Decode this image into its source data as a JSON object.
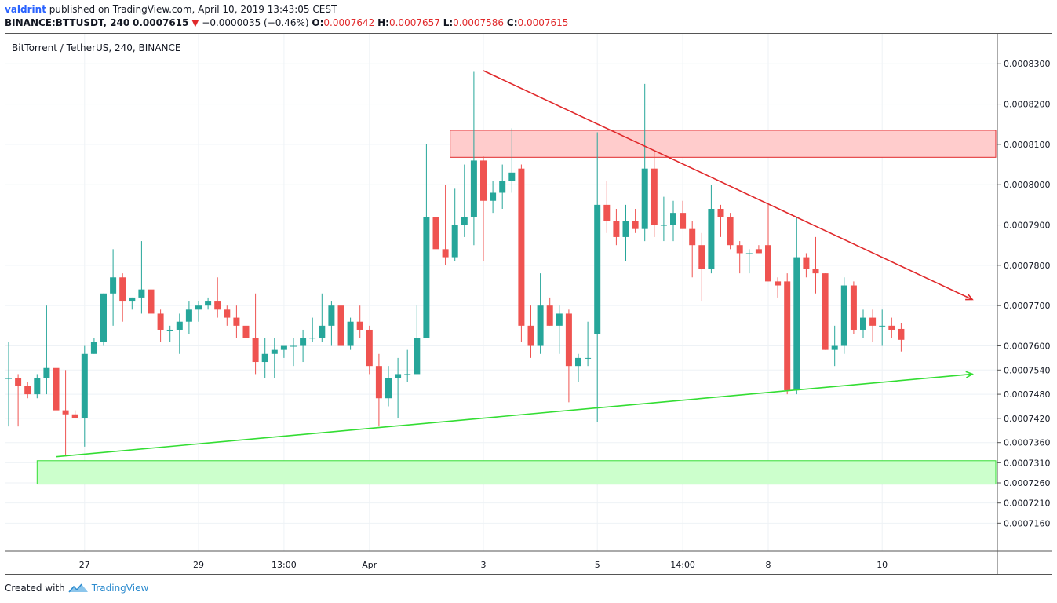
{
  "header": {
    "author": "valdrint",
    "published_text": "published on TradingView.com, April 10, 2019 13:43:05 CEST",
    "symbol": "BINANCE:BTTUSDT, 240",
    "last_price": "0.0007615",
    "change_arrow": "▼",
    "change": "−0.0000035 (−0.46%)",
    "o_label": "O:",
    "o_value": "0.0007642",
    "h_label": "H:",
    "h_value": "0.0007657",
    "l_label": "L:",
    "l_value": "0.0007586",
    "c_label": "C:",
    "c_value": "0.0007615"
  },
  "chart_title": "BitTorrent / TetherUS, 240, BINANCE",
  "footer": {
    "created_with": "Created with",
    "brand": "TradingView",
    "logo_icon": "tradingview-logo-icon"
  },
  "colors": {
    "up": "#26a69a",
    "down": "#ef5350",
    "resistance": "#e0292b",
    "support": "#33dd33",
    "resistance_zone": "#ffcccc",
    "support_zone": "#ccffcc",
    "grid": "#eef2f6"
  },
  "chart_data": {
    "type": "candlestick",
    "title": "BitTorrent / TetherUS, 240, BINANCE",
    "ylim": [
      0.000711,
      0.000836
    ],
    "y_ticks": [
      "0.0008300",
      "0.0008200",
      "0.0008100",
      "0.0008000",
      "0.0007900",
      "0.0007800",
      "0.0007700",
      "0.0007600",
      "0.0007540",
      "0.0007480",
      "0.0007420",
      "0.0007360",
      "0.0007310",
      "0.0007260",
      "0.0007210",
      "0.0007160"
    ],
    "x_labels": [
      {
        "label": "27",
        "bar": 8
      },
      {
        "label": "29",
        "bar": 20
      },
      {
        "label": "13:00",
        "bar": 29
      },
      {
        "label": "Apr",
        "bar": 38
      },
      {
        "label": "3",
        "bar": 50
      },
      {
        "label": "5",
        "bar": 62
      },
      {
        "label": "14:00",
        "bar": 71
      },
      {
        "label": "8",
        "bar": 80
      },
      {
        "label": "10",
        "bar": 92
      }
    ],
    "candles": [
      {
        "o": 0.000752,
        "h": 0.000761,
        "l": 0.00074,
        "c": 0.000752
      },
      {
        "o": 0.000752,
        "h": 0.000753,
        "l": 0.00074,
        "c": 0.00075
      },
      {
        "o": 0.00075,
        "h": 0.000751,
        "l": 0.000747,
        "c": 0.000748
      },
      {
        "o": 0.000748,
        "h": 0.000753,
        "l": 0.000747,
        "c": 0.000752
      },
      {
        "o": 0.000752,
        "h": 0.00077,
        "l": 0.000748,
        "c": 0.0007545
      },
      {
        "o": 0.0007545,
        "h": 0.000755,
        "l": 0.000727,
        "c": 0.000744
      },
      {
        "o": 0.000744,
        "h": 0.000754,
        "l": 0.000733,
        "c": 0.000743
      },
      {
        "o": 0.000743,
        "h": 0.000744,
        "l": 0.000742,
        "c": 0.000742
      },
      {
        "o": 0.000742,
        "h": 0.00076,
        "l": 0.000735,
        "c": 0.000758
      },
      {
        "o": 0.000758,
        "h": 0.000762,
        "l": 0.000758,
        "c": 0.000761
      },
      {
        "o": 0.000761,
        "h": 0.000773,
        "l": 0.00076,
        "c": 0.000773
      },
      {
        "o": 0.000773,
        "h": 0.000784,
        "l": 0.000765,
        "c": 0.000777
      },
      {
        "o": 0.000777,
        "h": 0.000778,
        "l": 0.000766,
        "c": 0.000771
      },
      {
        "o": 0.000771,
        "h": 0.000772,
        "l": 0.000769,
        "c": 0.000772
      },
      {
        "o": 0.000772,
        "h": 0.000786,
        "l": 0.000768,
        "c": 0.000774
      },
      {
        "o": 0.000774,
        "h": 0.000776,
        "l": 0.000768,
        "c": 0.000768
      },
      {
        "o": 0.000768,
        "h": 0.000769,
        "l": 0.000761,
        "c": 0.000764
      },
      {
        "o": 0.000764,
        "h": 0.000765,
        "l": 0.000761,
        "c": 0.000764
      },
      {
        "o": 0.000764,
        "h": 0.000768,
        "l": 0.000758,
        "c": 0.000766
      },
      {
        "o": 0.000766,
        "h": 0.000771,
        "l": 0.000763,
        "c": 0.000769
      },
      {
        "o": 0.000769,
        "h": 0.000771,
        "l": 0.000766,
        "c": 0.00077
      },
      {
        "o": 0.00077,
        "h": 0.000772,
        "l": 0.000769,
        "c": 0.000771
      },
      {
        "o": 0.000771,
        "h": 0.000777,
        "l": 0.000767,
        "c": 0.000769
      },
      {
        "o": 0.000769,
        "h": 0.00077,
        "l": 0.000765,
        "c": 0.000767
      },
      {
        "o": 0.000767,
        "h": 0.00077,
        "l": 0.000762,
        "c": 0.000765
      },
      {
        "o": 0.000765,
        "h": 0.000768,
        "l": 0.000761,
        "c": 0.000762
      },
      {
        "o": 0.000762,
        "h": 0.000773,
        "l": 0.000753,
        "c": 0.000756
      },
      {
        "o": 0.000756,
        "h": 0.000762,
        "l": 0.000752,
        "c": 0.000758
      },
      {
        "o": 0.000758,
        "h": 0.000762,
        "l": 0.000752,
        "c": 0.000759
      },
      {
        "o": 0.000759,
        "h": 0.00076,
        "l": 0.000757,
        "c": 0.00076
      },
      {
        "o": 0.00076,
        "h": 0.000762,
        "l": 0.000755,
        "c": 0.00076
      },
      {
        "o": 0.00076,
        "h": 0.000764,
        "l": 0.000756,
        "c": 0.000762
      },
      {
        "o": 0.000762,
        "h": 0.000767,
        "l": 0.000761,
        "c": 0.000762
      },
      {
        "o": 0.000762,
        "h": 0.000773,
        "l": 0.000761,
        "c": 0.000765
      },
      {
        "o": 0.000765,
        "h": 0.000771,
        "l": 0.00076,
        "c": 0.00077
      },
      {
        "o": 0.00077,
        "h": 0.000771,
        "l": 0.00076,
        "c": 0.00076
      },
      {
        "o": 0.00076,
        "h": 0.000767,
        "l": 0.000759,
        "c": 0.000766
      },
      {
        "o": 0.000766,
        "h": 0.00077,
        "l": 0.000762,
        "c": 0.000764
      },
      {
        "o": 0.000764,
        "h": 0.000765,
        "l": 0.000753,
        "c": 0.000755
      },
      {
        "o": 0.000755,
        "h": 0.000758,
        "l": 0.00074,
        "c": 0.000747
      },
      {
        "o": 0.000747,
        "h": 0.000755,
        "l": 0.000745,
        "c": 0.000752
      },
      {
        "o": 0.000752,
        "h": 0.000757,
        "l": 0.000742,
        "c": 0.000753
      },
      {
        "o": 0.000753,
        "h": 0.000759,
        "l": 0.000751,
        "c": 0.000753
      },
      {
        "o": 0.000753,
        "h": 0.00077,
        "l": 0.000753,
        "c": 0.000762
      },
      {
        "o": 0.000762,
        "h": 0.00081,
        "l": 0.000762,
        "c": 0.000792
      },
      {
        "o": 0.000792,
        "h": 0.000796,
        "l": 0.000781,
        "c": 0.000784
      },
      {
        "o": 0.000784,
        "h": 0.0008,
        "l": 0.00078,
        "c": 0.000782
      },
      {
        "o": 0.000782,
        "h": 0.000799,
        "l": 0.000781,
        "c": 0.00079
      },
      {
        "o": 0.00079,
        "h": 0.000805,
        "l": 0.000787,
        "c": 0.000792
      },
      {
        "o": 0.000792,
        "h": 0.000828,
        "l": 0.000785,
        "c": 0.000806
      },
      {
        "o": 0.000806,
        "h": 0.000807,
        "l": 0.000781,
        "c": 0.000796
      },
      {
        "o": 0.000796,
        "h": 0.000801,
        "l": 0.000793,
        "c": 0.000798
      },
      {
        "o": 0.000798,
        "h": 0.000805,
        "l": 0.000794,
        "c": 0.000801
      },
      {
        "o": 0.000801,
        "h": 0.000814,
        "l": 0.000798,
        "c": 0.000803
      },
      {
        "o": 0.000804,
        "h": 0.000805,
        "l": 0.000761,
        "c": 0.000765
      },
      {
        "o": 0.000765,
        "h": 0.00077,
        "l": 0.000757,
        "c": 0.00076
      },
      {
        "o": 0.00076,
        "h": 0.000778,
        "l": 0.000758,
        "c": 0.00077
      },
      {
        "o": 0.00077,
        "h": 0.000772,
        "l": 0.000765,
        "c": 0.000765
      },
      {
        "o": 0.000765,
        "h": 0.00077,
        "l": 0.000758,
        "c": 0.000768
      },
      {
        "o": 0.000768,
        "h": 0.000769,
        "l": 0.000746,
        "c": 0.000755
      },
      {
        "o": 0.000755,
        "h": 0.000758,
        "l": 0.000751,
        "c": 0.000757
      },
      {
        "o": 0.000757,
        "h": 0.000766,
        "l": 0.000755,
        "c": 0.000757
      },
      {
        "o": 0.000763,
        "h": 0.000813,
        "l": 0.000741,
        "c": 0.000795
      },
      {
        "o": 0.000795,
        "h": 0.000801,
        "l": 0.000788,
        "c": 0.000791
      },
      {
        "o": 0.000791,
        "h": 0.000794,
        "l": 0.000785,
        "c": 0.000787
      },
      {
        "o": 0.000787,
        "h": 0.000795,
        "l": 0.000781,
        "c": 0.000791
      },
      {
        "o": 0.000791,
        "h": 0.000794,
        "l": 0.000788,
        "c": 0.000789
      },
      {
        "o": 0.000789,
        "h": 0.000825,
        "l": 0.000786,
        "c": 0.000804
      },
      {
        "o": 0.000804,
        "h": 0.000808,
        "l": 0.000787,
        "c": 0.00079
      },
      {
        "o": 0.00079,
        "h": 0.000797,
        "l": 0.000786,
        "c": 0.00079
      },
      {
        "o": 0.00079,
        "h": 0.000796,
        "l": 0.000786,
        "c": 0.000793
      },
      {
        "o": 0.000793,
        "h": 0.000796,
        "l": 0.000789,
        "c": 0.000789
      },
      {
        "o": 0.000789,
        "h": 0.000791,
        "l": 0.000777,
        "c": 0.000785
      },
      {
        "o": 0.000785,
        "h": 0.000788,
        "l": 0.000771,
        "c": 0.000779
      },
      {
        "o": 0.000779,
        "h": 0.0008,
        "l": 0.000778,
        "c": 0.000794
      },
      {
        "o": 0.000794,
        "h": 0.000795,
        "l": 0.000787,
        "c": 0.000792
      },
      {
        "o": 0.000792,
        "h": 0.000793,
        "l": 0.000784,
        "c": 0.000785
      },
      {
        "o": 0.000785,
        "h": 0.000786,
        "l": 0.000778,
        "c": 0.000783
      },
      {
        "o": 0.000783,
        "h": 0.000784,
        "l": 0.000778,
        "c": 0.000783
      },
      {
        "o": 0.000784,
        "h": 0.000785,
        "l": 0.000783,
        "c": 0.000783
      },
      {
        "o": 0.000785,
        "h": 0.000795,
        "l": 0.000776,
        "c": 0.000776
      },
      {
        "o": 0.000776,
        "h": 0.000777,
        "l": 0.000772,
        "c": 0.000775
      },
      {
        "o": 0.000776,
        "h": 0.000778,
        "l": 0.000748,
        "c": 0.000749
      },
      {
        "o": 0.000749,
        "h": 0.000792,
        "l": 0.000748,
        "c": 0.000782
      },
      {
        "o": 0.000782,
        "h": 0.000783,
        "l": 0.000777,
        "c": 0.000779
      },
      {
        "o": 0.000779,
        "h": 0.000787,
        "l": 0.000773,
        "c": 0.000778
      },
      {
        "o": 0.000778,
        "h": 0.000778,
        "l": 0.000759,
        "c": 0.000759
      },
      {
        "o": 0.000759,
        "h": 0.000765,
        "l": 0.000755,
        "c": 0.00076
      },
      {
        "o": 0.00076,
        "h": 0.000777,
        "l": 0.000758,
        "c": 0.000775
      },
      {
        "o": 0.000775,
        "h": 0.000776,
        "l": 0.000763,
        "c": 0.000764
      },
      {
        "o": 0.000764,
        "h": 0.000769,
        "l": 0.000762,
        "c": 0.000767
      },
      {
        "o": 0.000767,
        "h": 0.000769,
        "l": 0.000761,
        "c": 0.000765
      },
      {
        "o": 0.000765,
        "h": 0.000769,
        "l": 0.00076,
        "c": 0.000765
      },
      {
        "o": 0.000765,
        "h": 0.000767,
        "l": 0.000762,
        "c": 0.000764
      },
      {
        "o": 0.0007642,
        "h": 0.0007657,
        "l": 0.0007586,
        "c": 0.0007615
      }
    ],
    "drawings": {
      "resistance_zone": {
        "y1": 0.0008135,
        "y2": 0.0008068,
        "from_bar": 46.5,
        "to": "right-edge"
      },
      "support_zone": {
        "y1": 0.0007315,
        "y2": 0.0007257,
        "from_bar": 3,
        "to": "right-edge"
      },
      "resistance_line": {
        "from": {
          "bar": 50,
          "price": 0.0008283
        },
        "to": {
          "bar": 101.5,
          "price": 0.0007715
        }
      },
      "support_line": {
        "from": {
          "bar": 5,
          "price": 0.0007325
        },
        "to": {
          "bar": 101.5,
          "price": 0.000753
        }
      }
    }
  }
}
